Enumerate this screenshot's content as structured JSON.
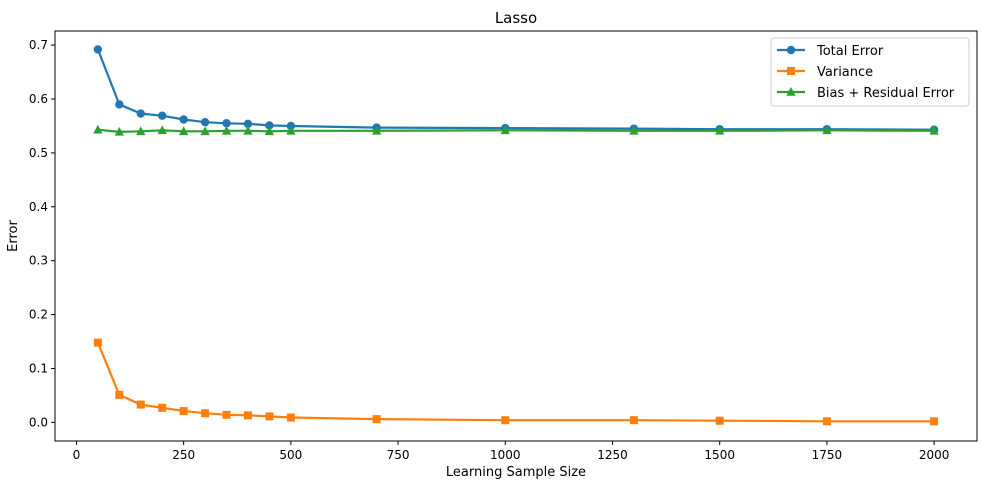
{
  "chart_data": {
    "type": "line",
    "title": "Lasso",
    "xlabel": "Learning Sample Size",
    "ylabel": "Error",
    "xlim": [
      -50,
      2100
    ],
    "ylim": [
      -0.0346,
      0.7262
    ],
    "xticks": [
      0,
      250,
      500,
      750,
      1000,
      1250,
      1500,
      1750,
      2000
    ],
    "xtick_labels": [
      "0",
      "250",
      "500",
      "750",
      "1000",
      "1250",
      "1500",
      "1750",
      "2000"
    ],
    "yticks": [
      0.0,
      0.1,
      0.2,
      0.3,
      0.4,
      0.5,
      0.6,
      0.7
    ],
    "ytick_labels": [
      "0.0",
      "0.1",
      "0.2",
      "0.3",
      "0.4",
      "0.5",
      "0.6",
      "0.7"
    ],
    "grid": false,
    "legend_position": "top-right",
    "x": [
      50,
      100,
      150,
      200,
      250,
      300,
      350,
      400,
      450,
      500,
      700,
      1000,
      1300,
      1500,
      1750,
      2000
    ],
    "series": [
      {
        "name": "Total Error",
        "color": "#1f77b4",
        "marker": "circle",
        "values": [
          0.692,
          0.59,
          0.573,
          0.569,
          0.562,
          0.557,
          0.555,
          0.554,
          0.551,
          0.55,
          0.547,
          0.546,
          0.545,
          0.544,
          0.544,
          0.543
        ]
      },
      {
        "name": "Variance",
        "color": "#ff7f0e",
        "marker": "square",
        "values": [
          0.148,
          0.051,
          0.033,
          0.027,
          0.021,
          0.017,
          0.014,
          0.013,
          0.011,
          0.009,
          0.006,
          0.004,
          0.004,
          0.003,
          0.002,
          0.002
        ]
      },
      {
        "name": "Bias + Residual Error",
        "color": "#2ca02c",
        "marker": "triangle",
        "values": [
          0.543,
          0.539,
          0.54,
          0.542,
          0.54,
          0.54,
          0.541,
          0.541,
          0.54,
          0.541,
          0.541,
          0.542,
          0.541,
          0.541,
          0.542,
          0.541
        ]
      }
    ]
  }
}
